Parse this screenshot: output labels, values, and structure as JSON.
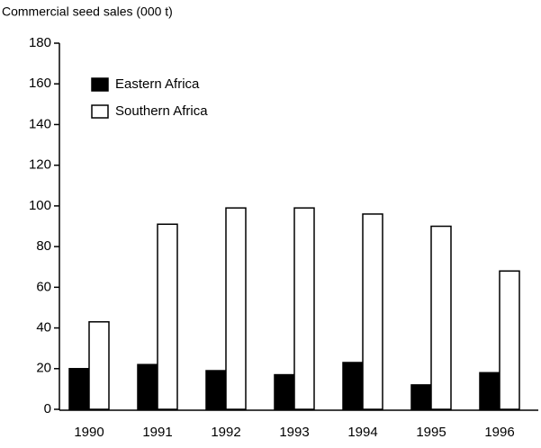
{
  "chart_data": {
    "type": "bar",
    "y_label": "Commercial seed sales (000 t)",
    "categories": [
      "1990",
      "1991",
      "1992",
      "1993",
      "1994",
      "1995",
      "1996"
    ],
    "series": [
      {
        "name": "Eastern Africa",
        "color": "#000000",
        "values": [
          20,
          22,
          19,
          17,
          23,
          12,
          18
        ]
      },
      {
        "name": "Southern Africa",
        "color": "#ffffff",
        "values": [
          43,
          91,
          99,
          99,
          96,
          90,
          68
        ]
      }
    ],
    "ylim": [
      0,
      180
    ],
    "yticks": [
      0,
      20,
      40,
      60,
      80,
      100,
      120,
      140,
      160,
      180
    ],
    "legend": "upper left"
  }
}
